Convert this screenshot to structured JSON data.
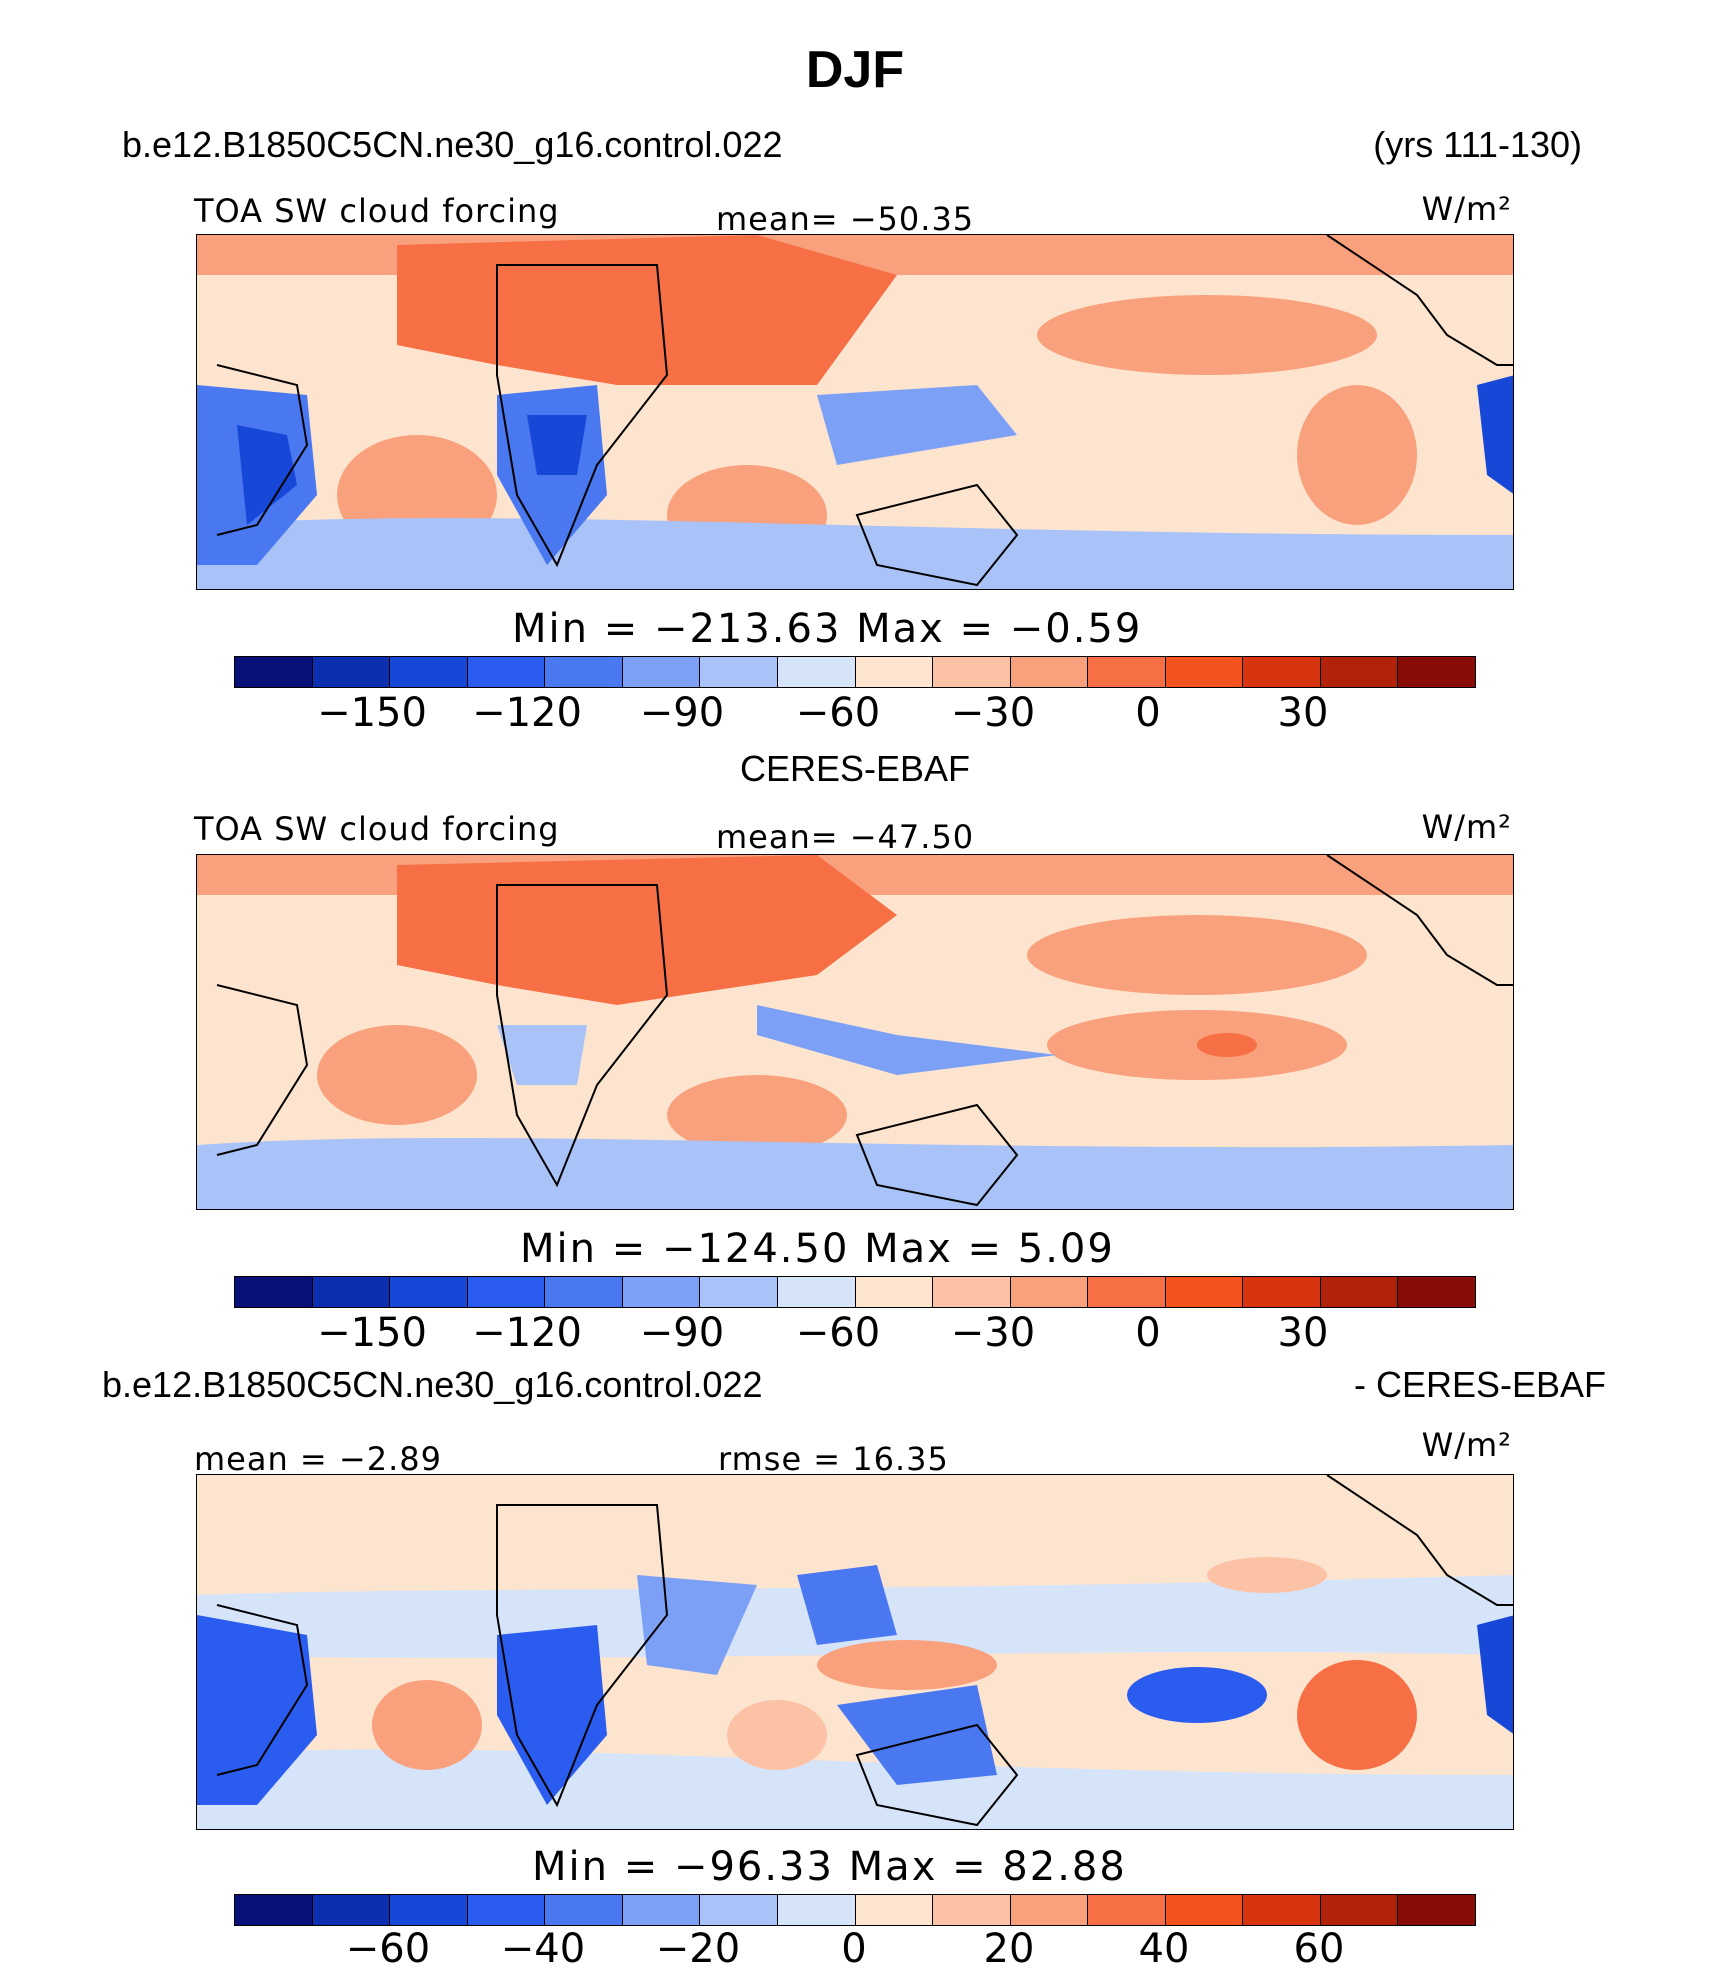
{
  "page": {
    "title": "DJF"
  },
  "panel1": {
    "case_name": "b.e12.B1850C5CN.ne30_g16.control.022",
    "years": "(yrs 111-130)",
    "variable": "TOA SW cloud forcing",
    "mean": "mean=  −50.35",
    "units": "W/m²",
    "minmax": "Min  =  −213.63  Max  =    −0.59",
    "ticks": [
      "−150",
      "−120",
      "−90",
      "−60",
      "−30",
      "0",
      "30"
    ]
  },
  "panel2": {
    "title": "CERES-EBAF",
    "variable": "TOA SW cloud forcing",
    "mean": "mean=  −47.50",
    "units": "W/m²",
    "minmax": "Min  =  −124.50  Max  =     5.09",
    "ticks": [
      "−150",
      "−120",
      "−90",
      "−60",
      "−30",
      "0",
      "30"
    ]
  },
  "panel3": {
    "case_name": "b.e12.B1850C5CN.ne30_g16.control.022",
    "suffix": "- CERES-EBAF",
    "mean": "mean  =    −2.89",
    "rmse": "rmse  =   16.35",
    "units": "W/m²",
    "minmax": "Min  =  −96.33  Max  =   82.88",
    "ticks": [
      "−60",
      "−40",
      "−20",
      "0",
      "20",
      "40",
      "60"
    ]
  },
  "colors": {
    "colorbar": [
      "#08107a",
      "#0b2fb0",
      "#1747d6",
      "#2b5cf0",
      "#4a78f0",
      "#7ba0f5",
      "#a9c2f7",
      "#d6e4fa",
      "#fde4cf",
      "#fcc2a6",
      "#f9a07c",
      "#f66f45",
      "#f2531f",
      "#d63510",
      "#b2220a",
      "#870d06"
    ],
    "land": "#000000"
  }
}
